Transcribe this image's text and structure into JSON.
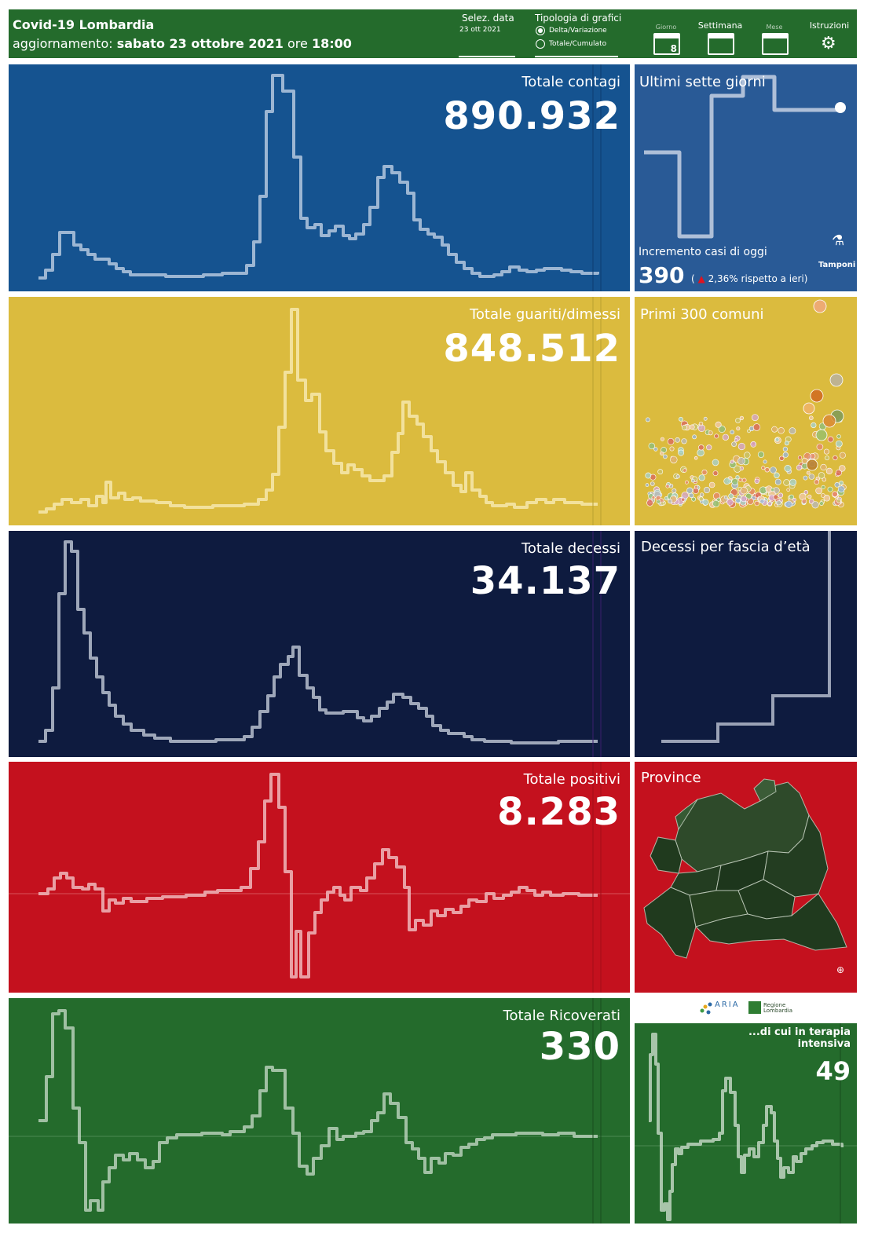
{
  "header": {
    "title": "Covid-19 Lombardia",
    "update_prefix": "aggiornamento:",
    "update_date": "sabato 23 ottobre 2021",
    "update_ore": "ore",
    "update_time": "18:00",
    "date_selector_label": "Selez. data",
    "date_selector_value": "23 ott 2021",
    "chart_type_label": "Tipologia di grafici",
    "chart_type_options": [
      "Delta/Variazione",
      "Totale/Cumulato"
    ],
    "chart_type_selected": "Delta/Variazione",
    "period_buttons": [
      "Giorno",
      "Settimana",
      "Mese"
    ],
    "period_selected": "Settimana",
    "day_icon_number": "8",
    "instructions_label": "Istruzioni"
  },
  "panels": {
    "contagi": {
      "title": "Totale contagi",
      "value": "890.932"
    },
    "sette_giorni": {
      "title": "Ultimi sette giorni",
      "increment_label": "Incremento casi di oggi",
      "increment_value": "390",
      "change_open": "(",
      "change_text": "2,36% rispetto a  ieri)",
      "tamponi_label": "Tamponi"
    },
    "guariti": {
      "title": "Totale guariti/dimessi",
      "value": "848.512"
    },
    "comuni": {
      "title": "Primi 300 comuni"
    },
    "decessi": {
      "title": "Totale decessi",
      "value": "34.137"
    },
    "eta": {
      "title": "Decessi per fascia d’età"
    },
    "positivi": {
      "title": "Totale positivi",
      "value": "8.283"
    },
    "province": {
      "title": "Province"
    },
    "ricoverati": {
      "title": "Totale Ricoverati",
      "value": "330"
    },
    "terapia": {
      "title": "...di cui in terapia intensiva",
      "value": "49"
    }
  },
  "logos": {
    "aria": "ARIA",
    "regione": "Regione Lombardia"
  },
  "colors": {
    "header": "#246b2c",
    "contagi": "#155390",
    "guariti": "#dbbb3e",
    "decessi": "#0e1b3f",
    "positivi": "#c4111e",
    "ricoverati": "#246b2c",
    "up_arrow": "#e0131f"
  },
  "icons": [
    "calendar-day-icon",
    "calendar-week-icon",
    "calendar-month-icon",
    "gear-icon",
    "test-tube-icon",
    "zoom-map-icon",
    "up-arrow-icon"
  ]
}
